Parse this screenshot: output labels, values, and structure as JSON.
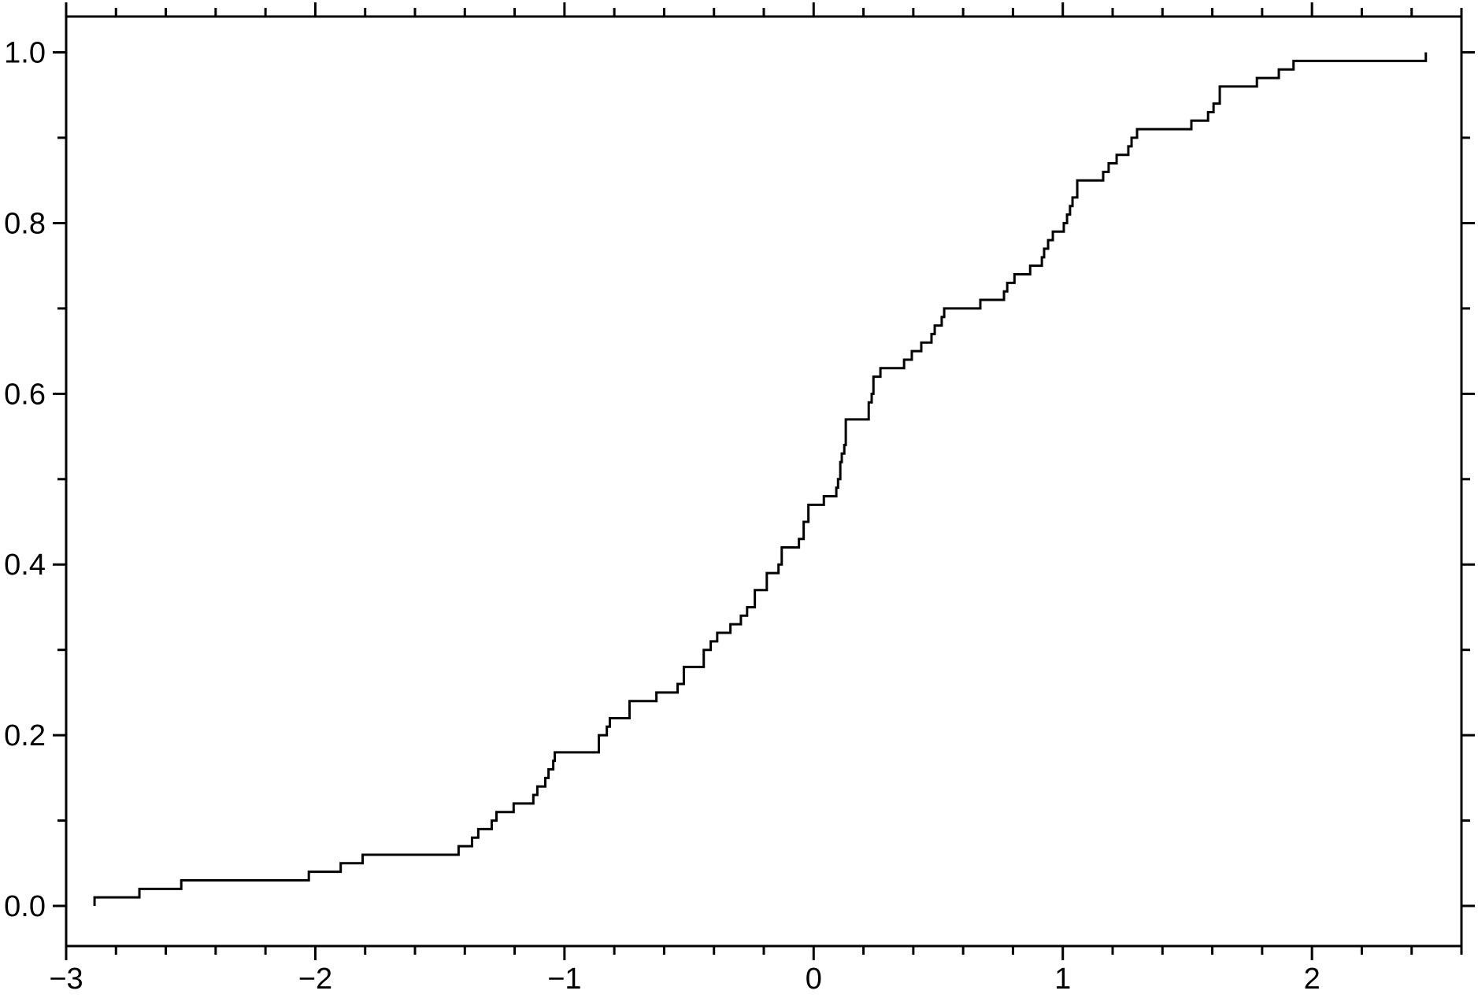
{
  "figure": {
    "description": "Empirical cumulative distribution function step plot, black curve on white background, plain box axes with outward tick marks on all four sides"
  },
  "chart_data": {
    "type": "line",
    "subtype": "ecdf_step",
    "title": "",
    "xlabel": "",
    "ylabel": "",
    "legend": null,
    "grid": false,
    "box": true,
    "ticks_mirrored_all_sides": true,
    "tick_direction": "out",
    "line_color": "#000000",
    "background_color": "#ffffff",
    "axis_color": "#000000",
    "line_width": 3,
    "axis_line_width": 3,
    "xlim": [
      -3.0,
      2.6
    ],
    "ylim": [
      -0.047,
      1.042
    ],
    "x_ticks": {
      "major": [
        -3,
        -2,
        -1,
        0,
        1,
        2
      ],
      "major_labels": [
        "−3",
        "−2",
        "−1",
        "0",
        "1",
        "2"
      ],
      "minor_step": 0.2
    },
    "y_ticks": {
      "major": [
        0.0,
        0.2,
        0.4,
        0.6,
        0.8,
        1.0
      ],
      "major_labels": [
        "0.0",
        "0.2",
        "0.4",
        "0.6",
        "0.8",
        "1.0"
      ],
      "minor_step": 0.1
    },
    "n": 100,
    "step_height": 0.01,
    "samples": [
      -2.886,
      -2.706,
      -2.538,
      -2.026,
      -1.898,
      -1.81,
      -1.425,
      -1.371,
      -1.346,
      -1.292,
      -1.273,
      -1.204,
      -1.125,
      -1.109,
      -1.077,
      -1.064,
      -1.045,
      -1.039,
      -0.862,
      -0.862,
      -0.83,
      -0.818,
      -0.739,
      -0.739,
      -0.631,
      -0.546,
      -0.521,
      -0.521,
      -0.441,
      -0.441,
      -0.413,
      -0.387,
      -0.334,
      -0.292,
      -0.267,
      -0.236,
      -0.236,
      -0.188,
      -0.188,
      -0.141,
      -0.128,
      -0.128,
      -0.059,
      -0.04,
      -0.04,
      -0.021,
      -0.021,
      0.041,
      0.091,
      0.098,
      0.107,
      0.107,
      0.113,
      0.123,
      0.129,
      0.129,
      0.129,
      0.221,
      0.221,
      0.233,
      0.24,
      0.24,
      0.268,
      0.363,
      0.394,
      0.432,
      0.473,
      0.486,
      0.514,
      0.524,
      0.669,
      0.764,
      0.777,
      0.806,
      0.869,
      0.916,
      0.925,
      0.941,
      0.96,
      1.004,
      1.017,
      1.029,
      1.039,
      1.058,
      1.058,
      1.162,
      1.184,
      1.216,
      1.263,
      1.276,
      1.298,
      1.516,
      1.583,
      1.605,
      1.63,
      1.63,
      1.779,
      1.867,
      1.926,
      2.457
    ],
    "curve_start": {
      "x": -2.886,
      "y": 0.0
    },
    "curve_end": {
      "x": 2.457,
      "y": 1.0
    }
  }
}
